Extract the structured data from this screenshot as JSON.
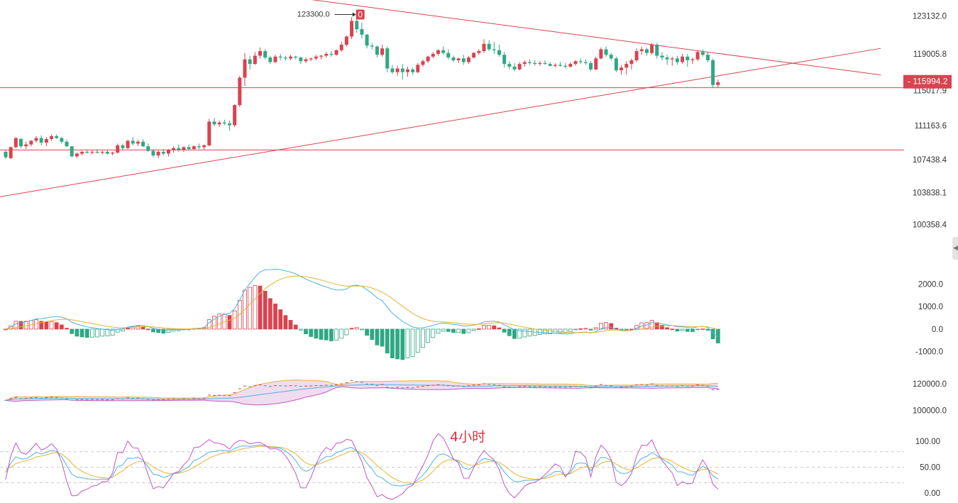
{
  "chart_data": [
    {
      "type": "candlestick",
      "title": "",
      "period_label": "4小时",
      "y_ticks": [
        "123132.0",
        "119005.8",
        "115017.9",
        "111163.6",
        "107438.4",
        "103838.1",
        "100358.4"
      ],
      "ylim": [
        99300,
        124500
      ],
      "current_price": "115994.2",
      "high_annotation": {
        "label": "123300.0",
        "value": 123300,
        "marker": "0"
      },
      "horizontal_levels": [
        115300,
        108500
      ],
      "trendlines": [
        {
          "name": "",
          "from": [
            -2,
            103300
          ],
          "to": [
            172,
            119600
          ]
        },
        {
          "name": "",
          "from": [
            55,
            125300
          ],
          "to": [
            172,
            116700
          ]
        }
      ],
      "colors": {
        "up": "#d9434f",
        "down": "#2fa884",
        "lines": "#d9434f"
      },
      "candles": [
        [
          108300,
          108500,
          107500,
          107700
        ],
        [
          107600,
          108900,
          107500,
          108800
        ],
        [
          108800,
          109900,
          108700,
          109800
        ],
        [
          109700,
          109800,
          108700,
          108900
        ],
        [
          108900,
          109400,
          108600,
          109100
        ],
        [
          109100,
          109600,
          108900,
          109500
        ],
        [
          109500,
          110000,
          109300,
          109800
        ],
        [
          109800,
          110100,
          109000,
          109300
        ],
        [
          109300,
          109900,
          108900,
          109700
        ],
        [
          109700,
          110200,
          109500,
          110000
        ],
        [
          110000,
          110200,
          109700,
          109800
        ],
        [
          109800,
          109900,
          109200,
          109400
        ],
        [
          109400,
          109600,
          108800,
          108900
        ],
        [
          108900,
          108900,
          107700,
          107800
        ],
        [
          107800,
          108200,
          107600,
          108100
        ],
        [
          108100,
          108400,
          107900,
          108300
        ],
        [
          108300,
          108500,
          108100,
          108200
        ],
        [
          108200,
          108500,
          108000,
          108300
        ],
        [
          108300,
          108600,
          108100,
          108200
        ],
        [
          108200,
          108400,
          108000,
          108300
        ],
        [
          108300,
          108500,
          108000,
          108100
        ],
        [
          108100,
          108300,
          107900,
          108200
        ],
        [
          108200,
          109200,
          108100,
          109000
        ],
        [
          109000,
          109200,
          108500,
          108700
        ],
        [
          108700,
          109600,
          108600,
          109500
        ],
        [
          109500,
          109900,
          109000,
          109200
        ],
        [
          109200,
          109600,
          108900,
          109400
        ],
        [
          109400,
          109700,
          108800,
          108900
        ],
        [
          108900,
          109200,
          108300,
          108400
        ],
        [
          108400,
          108600,
          107700,
          107900
        ],
        [
          107900,
          108500,
          107600,
          108300
        ],
        [
          108300,
          108600,
          107900,
          108100
        ],
        [
          108100,
          108600,
          107800,
          108500
        ],
        [
          108500,
          108900,
          108200,
          108700
        ],
        [
          108700,
          109100,
          108300,
          108500
        ],
        [
          108500,
          108900,
          108300,
          108800
        ],
        [
          108800,
          109100,
          108500,
          108600
        ],
        [
          108600,
          109000,
          108500,
          108900
        ],
        [
          108900,
          109200,
          108600,
          108800
        ],
        [
          108800,
          109100,
          108500,
          109000
        ],
        [
          109000,
          111900,
          108900,
          111600
        ],
        [
          111600,
          112000,
          111100,
          111300
        ],
        [
          111300,
          111700,
          111000,
          111500
        ],
        [
          111500,
          111800,
          111200,
          111400
        ],
        [
          111400,
          111700,
          110600,
          111200
        ],
        [
          111200,
          113500,
          111000,
          113400
        ],
        [
          113400,
          116600,
          113200,
          116400
        ],
        [
          116400,
          119100,
          115500,
          118400
        ],
        [
          118400,
          118800,
          117300,
          117900
        ],
        [
          117900,
          119200,
          117800,
          118800
        ],
        [
          118800,
          119700,
          118500,
          119300
        ],
        [
          119300,
          119500,
          118400,
          118600
        ],
        [
          118600,
          118800,
          117900,
          118100
        ],
        [
          118100,
          118900,
          118000,
          118700
        ],
        [
          118700,
          119000,
          118300,
          118600
        ],
        [
          118600,
          118800,
          118300,
          118500
        ],
        [
          118500,
          118900,
          118300,
          118700
        ],
        [
          118700,
          118800,
          118400,
          118600
        ],
        [
          118600,
          118700,
          117900,
          118200
        ],
        [
          118200,
          118600,
          118000,
          118400
        ],
        [
          118400,
          118600,
          118200,
          118500
        ],
        [
          118500,
          118900,
          118300,
          118700
        ],
        [
          118700,
          118900,
          118400,
          118800
        ],
        [
          118800,
          119200,
          118600,
          119000
        ],
        [
          119000,
          119300,
          118700,
          118900
        ],
        [
          118900,
          119500,
          118800,
          119400
        ],
        [
          119400,
          120300,
          119200,
          120000
        ],
        [
          120000,
          121000,
          119800,
          120900
        ],
        [
          120900,
          123000,
          120600,
          122600
        ],
        [
          122600,
          123300,
          121300,
          121700
        ],
        [
          121700,
          122400,
          120700,
          121100
        ],
        [
          121100,
          121200,
          119600,
          119900
        ],
        [
          119900,
          120200,
          119500,
          119800
        ],
        [
          119800,
          119900,
          118600,
          118900
        ],
        [
          118900,
          120000,
          118700,
          119600
        ],
        [
          119600,
          119800,
          117000,
          117400
        ],
        [
          117400,
          117800,
          116800,
          117000
        ],
        [
          117000,
          117700,
          116600,
          117400
        ],
        [
          117400,
          117900,
          116200,
          117000
        ],
        [
          117000,
          117600,
          116500,
          117300
        ],
        [
          117300,
          117500,
          116700,
          117000
        ],
        [
          117000,
          118000,
          116900,
          117800
        ],
        [
          117800,
          118400,
          117600,
          118200
        ],
        [
          118200,
          118800,
          118000,
          118700
        ],
        [
          118700,
          119200,
          118500,
          119000
        ],
        [
          119000,
          119500,
          118800,
          119400
        ],
        [
          119400,
          119800,
          118900,
          119100
        ],
        [
          119100,
          119500,
          118400,
          118600
        ],
        [
          118600,
          118800,
          118100,
          118300
        ],
        [
          118300,
          118600,
          118000,
          118500
        ],
        [
          118500,
          118900,
          117800,
          118100
        ],
        [
          118100,
          118800,
          117900,
          118600
        ],
        [
          118600,
          119200,
          118500,
          119100
        ],
        [
          119100,
          119500,
          118900,
          119300
        ],
        [
          119300,
          120600,
          119100,
          120100
        ],
        [
          120100,
          120500,
          119300,
          119500
        ],
        [
          119500,
          120300,
          119000,
          119400
        ],
        [
          119400,
          120000,
          118700,
          118900
        ],
        [
          118900,
          119200,
          117500,
          117900
        ],
        [
          117900,
          118200,
          117300,
          117600
        ],
        [
          117600,
          118000,
          117100,
          117300
        ],
        [
          117300,
          118100,
          117200,
          117900
        ],
        [
          117900,
          118300,
          117600,
          118100
        ],
        [
          118100,
          118400,
          117800,
          118000
        ],
        [
          118000,
          118300,
          117700,
          117900
        ],
        [
          117900,
          118200,
          117700,
          118000
        ],
        [
          118000,
          118300,
          117800,
          117900
        ],
        [
          117900,
          118100,
          117600,
          117700
        ],
        [
          117700,
          118000,
          117500,
          117800
        ],
        [
          117800,
          118100,
          117600,
          117700
        ],
        [
          117700,
          118000,
          117400,
          117600
        ],
        [
          117600,
          118100,
          117500,
          117900
        ],
        [
          117900,
          118300,
          117700,
          118200
        ],
        [
          118200,
          118500,
          117900,
          118100
        ],
        [
          118100,
          118400,
          117800,
          118000
        ],
        [
          118000,
          118200,
          117100,
          117300
        ],
        [
          117300,
          118700,
          117200,
          118500
        ],
        [
          118500,
          119700,
          118400,
          119500
        ],
        [
          119500,
          119800,
          118700,
          118900
        ],
        [
          118900,
          119100,
          118300,
          118500
        ],
        [
          118500,
          118700,
          117000,
          117200
        ],
        [
          117200,
          117800,
          116700,
          117500
        ],
        [
          117500,
          118200,
          116700,
          117900
        ],
        [
          117900,
          118500,
          117300,
          118300
        ],
        [
          118300,
          119600,
          118100,
          119300
        ],
        [
          119300,
          119800,
          118900,
          119500
        ],
        [
          119500,
          119700,
          118800,
          119100
        ],
        [
          119100,
          120200,
          118900,
          120000
        ],
        [
          120000,
          120200,
          118500,
          118800
        ],
        [
          118800,
          119200,
          118300,
          118600
        ],
        [
          118600,
          118900,
          117800,
          118400
        ],
        [
          118400,
          118700,
          117700,
          118500
        ],
        [
          118500,
          118800,
          117800,
          118100
        ],
        [
          118100,
          119000,
          117900,
          118700
        ],
        [
          118700,
          119000,
          117600,
          118300
        ],
        [
          118300,
          118600,
          117900,
          118400
        ],
        [
          118400,
          119400,
          118200,
          119200
        ],
        [
          119200,
          119500,
          118700,
          118900
        ],
        [
          118900,
          119200,
          118100,
          118300
        ],
        [
          118300,
          118500,
          115300,
          115600
        ],
        [
          115600,
          116200,
          115300,
          115900
        ]
      ]
    },
    {
      "type": "macd",
      "y_ticks": [
        "2000.0",
        "1000.0",
        "0.0",
        "-1000.0"
      ],
      "ylim": [
        -1700,
        2700
      ]
    },
    {
      "type": "boll",
      "y_ticks": [
        "120000.0",
        "100000.0"
      ],
      "ylim": [
        94000,
        127000
      ]
    },
    {
      "type": "kdj",
      "y_ticks": [
        "100.00",
        "50.00",
        "0.00"
      ],
      "ylim": [
        -15,
        125
      ],
      "dashed_levels": [
        80,
        50,
        20
      ]
    }
  ]
}
